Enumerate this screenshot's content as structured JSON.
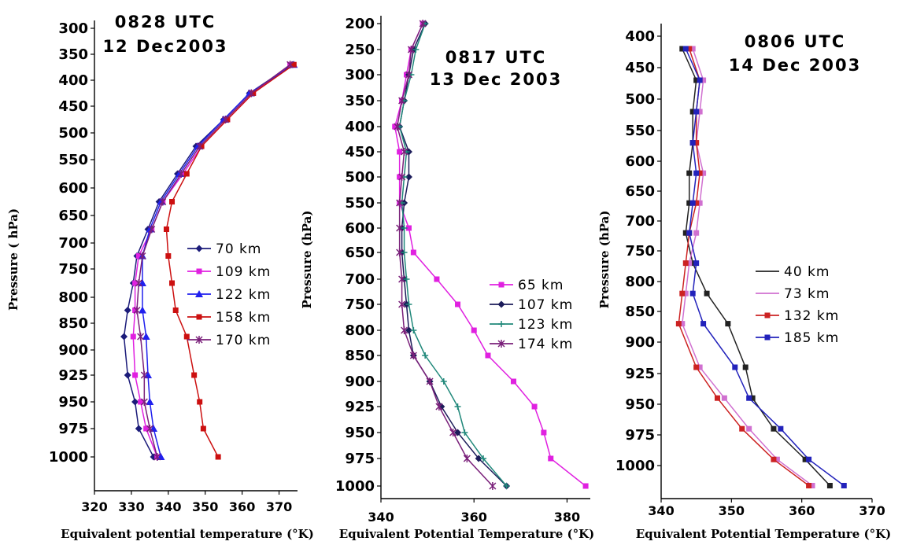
{
  "chart_data": [
    {
      "type": "line",
      "title": [
        "0828 UTC",
        "12 Dec2003"
      ],
      "xlabel": "Equivalent potential temperature (°K)",
      "ylabel": "Pressure ( hPa)",
      "xlim": [
        320,
        375
      ],
      "xticks": [
        320,
        330,
        340,
        350,
        360,
        370
      ],
      "ylim": [
        300,
        1010
      ],
      "yaxis_inverted": true,
      "yticks": [
        300,
        350,
        400,
        450,
        500,
        550,
        600,
        650,
        700,
        750,
        800,
        850,
        900,
        925,
        950,
        975,
        1000
      ],
      "legend_position": "right-middle",
      "pressure_levels": [
        370,
        425,
        475,
        525,
        575,
        625,
        675,
        725,
        775,
        825,
        875,
        925,
        950,
        975,
        1000
      ],
      "series": [
        {
          "name": "70 km",
          "color": "#1c1c7a",
          "marker": "diamond",
          "values": [
            373.5,
            362,
            355,
            347.5,
            342.5,
            337.5,
            334.5,
            331.5,
            330.5,
            329,
            328,
            329,
            331,
            332,
            336
          ]
        },
        {
          "name": "109 km",
          "color": "#e020e0",
          "marker": "square",
          "values": [
            373,
            363,
            356,
            349,
            344,
            338.5,
            335.5,
            332,
            331,
            331,
            330.5,
            331,
            332.5,
            334,
            337
          ]
        },
        {
          "name": "122 km",
          "color": "#2020ee",
          "marker": "triangle",
          "values": [
            374,
            362,
            355,
            348,
            343,
            338,
            335,
            333,
            333,
            333,
            334,
            334.5,
            335,
            336,
            338
          ]
        },
        {
          "name": "158 km",
          "color": "#cc1010",
          "marker": "square",
          "values": [
            374,
            363,
            356,
            349,
            345,
            341,
            339.5,
            340,
            341,
            342,
            345,
            347,
            348.5,
            349.5,
            353.5
          ]
        },
        {
          "name": "170 km",
          "color": "#7a207a",
          "marker": "star",
          "values": [
            373,
            362.5,
            355.5,
            348.5,
            343.5,
            338.5,
            335.5,
            333,
            332,
            331.5,
            332.5,
            333.5,
            333.5,
            335,
            337
          ]
        }
      ]
    },
    {
      "type": "line",
      "title": [
        "0817 UTC",
        "13 Dec 2003"
      ],
      "xlabel": "Equivalent Potential Temperature (°K)",
      "ylabel": "Pressure (hPa)",
      "xlim": [
        340,
        385
      ],
      "xticks": [
        340,
        360,
        380
      ],
      "ylim": [
        200,
        1010
      ],
      "yaxis_inverted": true,
      "yticks": [
        200,
        250,
        300,
        350,
        400,
        450,
        500,
        550,
        600,
        650,
        700,
        750,
        800,
        850,
        900,
        925,
        950,
        975,
        1000
      ],
      "legend_position": "right-middle",
      "pressure_levels": [
        200,
        250,
        300,
        350,
        400,
        450,
        500,
        550,
        600,
        650,
        700,
        750,
        800,
        850,
        900,
        925,
        950,
        975,
        1000
      ],
      "series": [
        {
          "name": "65 km",
          "color": "#e020e0",
          "marker": "square",
          "values": [
            349,
            346.5,
            345.5,
            344.5,
            343,
            344,
            344,
            344,
            346,
            347,
            352,
            356.5,
            360,
            363,
            368.5,
            373,
            375,
            376.5,
            384
          ]
        },
        {
          "name": "107 km",
          "color": "#1c1c5a",
          "marker": "diamond",
          "values": [
            349.5,
            347,
            346,
            345,
            344,
            346,
            346,
            345,
            344.5,
            344.5,
            345,
            345.5,
            346,
            347,
            350.5,
            353,
            356.5,
            361,
            367
          ]
        },
        {
          "name": "123 km",
          "color": "#20887a",
          "marker": "plus",
          "values": [
            349.5,
            347.5,
            346.5,
            345,
            344,
            345.5,
            345,
            344.5,
            345,
            345,
            345.5,
            346,
            347,
            349.5,
            353.5,
            356.5,
            358,
            362,
            367
          ]
        },
        {
          "name": "174 km",
          "color": "#7a207a",
          "marker": "star",
          "values": [
            349,
            346.5,
            346,
            344.5,
            343.5,
            345,
            344.5,
            344,
            344,
            344,
            344.5,
            344.5,
            345,
            347,
            350.5,
            352.5,
            355.5,
            358.5,
            364
          ]
        }
      ]
    },
    {
      "type": "line",
      "title": [
        "0806 UTC",
        "14 Dec 2003"
      ],
      "xlabel": "Equivalent Potential Temperature (°K)",
      "ylabel": "Pressure (hPa)",
      "xlim": [
        340,
        370
      ],
      "xticks": [
        340,
        350,
        360,
        370
      ],
      "ylim": [
        390,
        1010
      ],
      "yaxis_inverted": true,
      "yticks": [
        400,
        450,
        500,
        550,
        600,
        650,
        700,
        750,
        800,
        850,
        900,
        925,
        950,
        975,
        1000
      ],
      "legend_position": "right-middle",
      "pressure_levels": [
        420,
        470,
        520,
        570,
        620,
        670,
        720,
        770,
        820,
        870,
        920,
        945,
        970,
        995,
        1020
      ],
      "series": [
        {
          "name": "40 km",
          "color": "#222222",
          "marker": "none",
          "values": [
            343,
            345,
            344.5,
            344.5,
            344,
            344,
            343.5,
            344.5,
            346.5,
            349.5,
            352,
            353,
            356,
            360.5,
            364
          ]
        },
        {
          "name": "73 km",
          "color": "#d070d0",
          "marker": "none",
          "values": [
            344.5,
            346,
            345.5,
            345,
            346,
            345.5,
            345,
            344,
            343.5,
            343,
            345.5,
            349,
            352.5,
            356.5,
            361.5
          ]
        },
        {
          "name": "132 km",
          "color": "#cc2222",
          "marker": "square",
          "values": [
            344,
            345.5,
            345,
            345,
            345.5,
            345,
            344,
            343.5,
            343,
            342.5,
            345,
            348,
            351.5,
            356,
            361
          ]
        },
        {
          "name": "185 km",
          "color": "#2222bb",
          "marker": "square",
          "values": [
            343.5,
            345.5,
            345,
            344.5,
            345,
            344.5,
            344,
            345,
            344.5,
            346,
            350.5,
            352.5,
            357,
            361,
            366
          ]
        }
      ]
    }
  ]
}
